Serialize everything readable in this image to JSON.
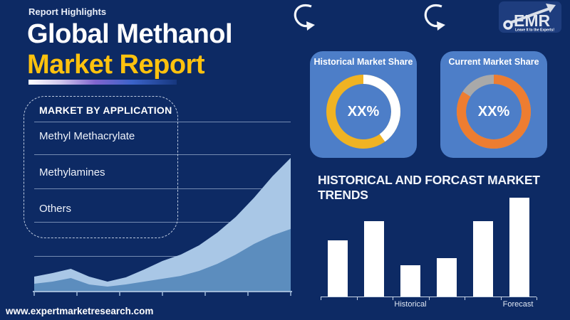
{
  "page": {
    "eyebrow": "Report Highlights",
    "title_line1": "Global Methanol",
    "title_line2": "Market Report",
    "footer_url": "www.expertmarketresearch.com"
  },
  "logo": {
    "text": "EMR",
    "tagline": "Leave It to the Experts!"
  },
  "applications": {
    "heading": "MARKET BY APPLICATION",
    "items": [
      "Methyl Methacrylate",
      "Methylamines",
      "Others"
    ]
  },
  "market_share_cards": [
    {
      "title": "Historical Market Share",
      "center_label": "XX%"
    },
    {
      "title": "Current Market Share",
      "center_label": "XX%"
    }
  ],
  "trends": {
    "heading": "HISTORICAL AND FORCAST MARKET TRENDS",
    "x_labels": [
      "Historical",
      "Forecast"
    ]
  },
  "colors": {
    "background": "#0d2a64",
    "accent_yellow": "#ffc20e",
    "card_blue": "#4d7ec8",
    "donut_yellow": "#f0b323",
    "donut_orange": "#ed7d31",
    "donut_gray": "#a9a9a9",
    "area_light": "#a9c7e6",
    "area_medium": "#5c8dbe",
    "bar_white": "#ffffff"
  },
  "chart_data": [
    {
      "type": "pie",
      "title": "Historical Market Share",
      "donut": true,
      "center_label": "XX%",
      "segments": [
        {
          "label": "remainder",
          "value": 40,
          "color": "#ffffff"
        },
        {
          "label": "historical share (XX%)",
          "value": 60,
          "color": "#f0b323"
        }
      ],
      "legend": "none"
    },
    {
      "type": "pie",
      "title": "Current Market Share",
      "donut": true,
      "center_label": "XX%",
      "segments": [
        {
          "label": "current share (XX%)",
          "value": 84,
          "color": "#ed7d31"
        },
        {
          "label": "remainder",
          "value": 16,
          "color": "#a9a9a9"
        }
      ],
      "legend": "none"
    },
    {
      "type": "area",
      "title": "",
      "xlabel": "",
      "ylabel": "",
      "x_tick_count": 7,
      "x_tick_labels": [
        "",
        "",
        "",
        "",
        "",
        "",
        ""
      ],
      "ylim": [
        0,
        190
      ],
      "grid": true,
      "series": [
        {
          "name": "upper band",
          "color": "#a9c7e6",
          "values": [
            21,
            26,
            32,
            21,
            14,
            20,
            31,
            43,
            52,
            65,
            83,
            105,
            132,
            162,
            188
          ]
        },
        {
          "name": "lower band",
          "color": "#5c8dbe",
          "values": [
            11,
            14,
            19,
            10,
            7,
            10,
            14,
            18,
            22,
            29,
            39,
            52,
            67,
            79,
            88
          ]
        }
      ]
    },
    {
      "type": "bar",
      "title": "HISTORICAL AND FORCAST MARKET TRENDS",
      "categories": [
        "",
        "",
        "Historical",
        "",
        "",
        "Forecast"
      ],
      "values": [
        57,
        76,
        32,
        39,
        76,
        100
      ],
      "ylim": [
        0,
        100
      ],
      "bar_color": "#ffffff",
      "legend": "none"
    }
  ]
}
